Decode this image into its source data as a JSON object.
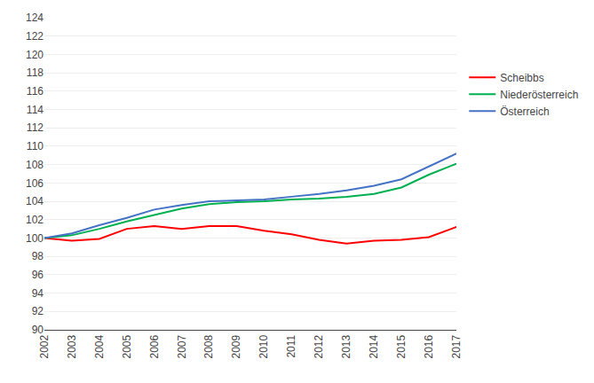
{
  "chart_data": {
    "type": "line",
    "x": [
      2002,
      2003,
      2004,
      2005,
      2006,
      2007,
      2008,
      2009,
      2010,
      2011,
      2012,
      2013,
      2014,
      2015,
      2016,
      2017
    ],
    "series": [
      {
        "name": "Scheibbs",
        "color": "#ff0000",
        "values": [
          100.0,
          99.7,
          99.9,
          101.0,
          101.3,
          101.0,
          101.3,
          101.3,
          100.8,
          100.4,
          99.8,
          99.4,
          99.7,
          99.8,
          100.1,
          101.2
        ]
      },
      {
        "name": "Niederösterreich",
        "color": "#00b050",
        "values": [
          100.0,
          100.3,
          101.0,
          101.8,
          102.5,
          103.2,
          103.7,
          103.9,
          104.0,
          104.2,
          104.3,
          104.5,
          104.8,
          105.5,
          106.9,
          108.1
        ]
      },
      {
        "name": "Österreich",
        "color": "#4472c4",
        "values": [
          100.0,
          100.5,
          101.4,
          102.2,
          103.1,
          103.6,
          104.0,
          104.1,
          104.2,
          104.5,
          104.8,
          105.2,
          105.7,
          106.4,
          107.8,
          109.2
        ]
      }
    ],
    "xlim": [
      2002,
      2017
    ],
    "xticks": [
      2002,
      2003,
      2004,
      2005,
      2006,
      2007,
      2008,
      2009,
      2010,
      2011,
      2012,
      2013,
      2014,
      2015,
      2016,
      2017
    ],
    "ylim": [
      90,
      124
    ],
    "yticks": [
      90,
      92,
      94,
      96,
      98,
      100,
      102,
      104,
      106,
      108,
      110,
      112,
      114,
      116,
      118,
      120,
      122,
      124
    ],
    "grid": true,
    "legend": "right"
  }
}
